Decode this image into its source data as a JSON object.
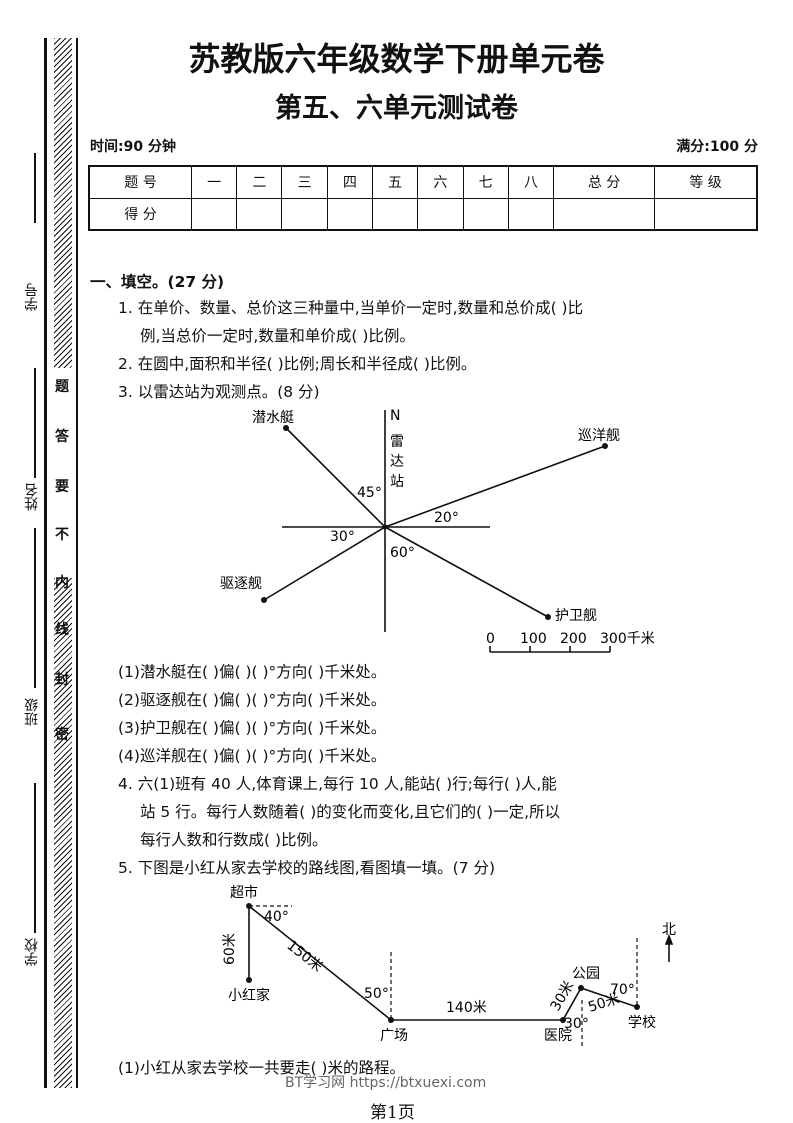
{
  "binding": {
    "fields": [
      "学号",
      "姓名",
      "班级",
      "学校"
    ],
    "seal": [
      "题",
      "答",
      "要",
      "不",
      "内",
      "线",
      "封",
      "密"
    ]
  },
  "title": "苏教版六年级数学下册单元卷",
  "subtitle": "第五、六单元测试卷",
  "time": "时间:90 分钟",
  "full_score": "满分:100 分",
  "score_table": {
    "headers": [
      "题 号",
      "一",
      "二",
      "三",
      "四",
      "五",
      "六",
      "七",
      "八",
      "总 分",
      "等 级"
    ],
    "row_label": "得 分"
  },
  "section1": "一、填空。(27 分)",
  "q1a": "1.  在单价、数量、总价这三种量中,当单价一定时,数量和总价成(      )比",
  "q1b": "例,当总价一定时,数量和单价成(     )比例。",
  "q2": "2.  在圆中,面积和半径(     )比例;周长和半径成(     )比例。",
  "q3": "3.  以雷达站为观测点。(8 分)",
  "radar": {
    "north": "N",
    "station": [
      "雷",
      "达",
      "站"
    ],
    "ships": [
      "潜水艇",
      "驱逐舰",
      "护卫舰",
      "巡洋舰"
    ],
    "angles": [
      "45°",
      "30°",
      "60°",
      "20°"
    ],
    "scale": [
      "0",
      "100",
      "200",
      "300千米"
    ]
  },
  "q3_parts": [
    "(1)潜水艇在(      )偏(      )(      )°方向(      )千米处。",
    "(2)驱逐舰在(      )偏(      )(      )°方向(      )千米处。",
    "(3)护卫舰在(      )偏(      )(      )°方向(      )千米处。",
    "(4)巡洋舰在(      )偏(      )(      )°方向(      )千米处。"
  ],
  "q4a": "4.  六(1)班有 40 人,体育课上,每行 10 人,能站(      )行;每行(      )人,能",
  "q4b": "站 5 行。每行人数随着(      )的变化而变化,且它们的(      )一定,所以",
  "q4c": "每行人数和行数成(      )比例。",
  "q5": "5.  下图是小红从家去学校的路线图,看图填一填。(7 分)",
  "route": {
    "places": [
      "超市",
      "小红家",
      "广场",
      "医院",
      "公园",
      "学校"
    ],
    "distances": [
      "60米",
      "150米",
      "140米",
      "30米",
      "50米"
    ],
    "angles": [
      "40°",
      "50°",
      "30°",
      "70°"
    ],
    "north": "北"
  },
  "q5_1": "(1)小红从家去学校一共要走(        )米的路程。",
  "watermark": "BT学习网 https://btxuexi.com",
  "page": "第1页"
}
